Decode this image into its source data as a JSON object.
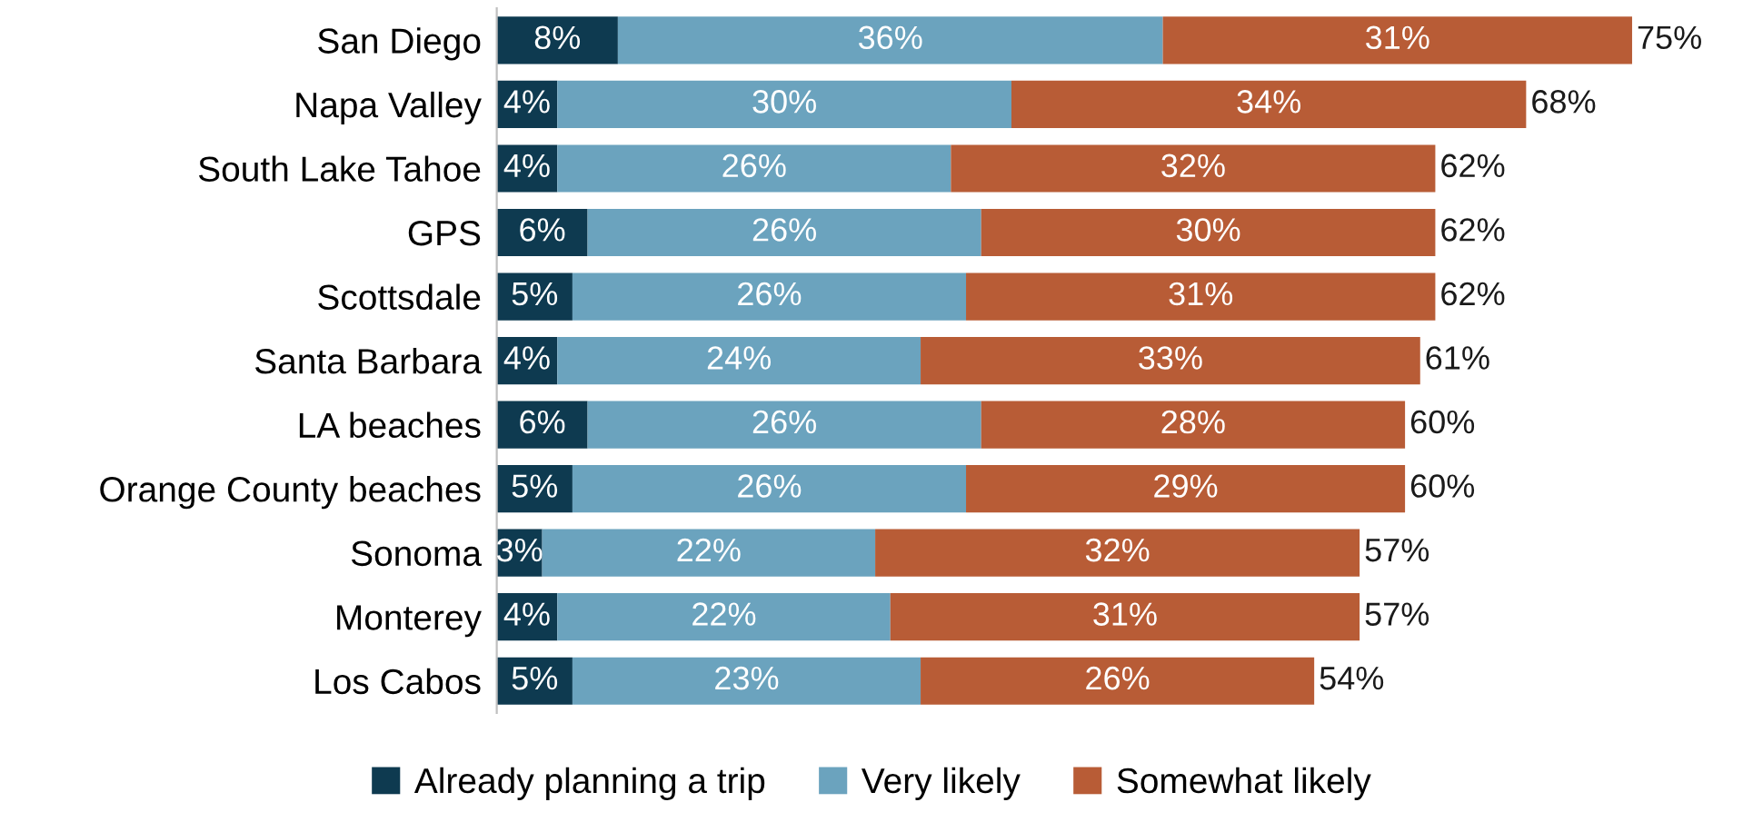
{
  "chart_data": {
    "type": "bar",
    "orientation": "horizontal",
    "stacked": true,
    "categories": [
      "San Diego",
      "Napa Valley",
      "South Lake Tahoe",
      "GPS",
      "Scottsdale",
      "Santa Barbara",
      "LA beaches",
      "Orange County beaches",
      "Sonoma",
      "Monterey",
      "Los Cabos"
    ],
    "series": [
      {
        "name": "Already planning a trip",
        "color": "#0e3a50",
        "values": [
          8,
          4,
          4,
          6,
          5,
          4,
          6,
          5,
          3,
          4,
          5
        ],
        "value_labels": [
          "8%",
          "4%",
          "4%",
          "6%",
          "5%",
          "4%",
          "6%",
          "5%",
          "3%",
          "4%",
          "5%"
        ]
      },
      {
        "name": "Very likely",
        "color": "#6ba3be",
        "values": [
          36,
          30,
          26,
          26,
          26,
          24,
          26,
          26,
          22,
          22,
          23
        ],
        "value_labels": [
          "36%",
          "30%",
          "26%",
          "26%",
          "26%",
          "24%",
          "26%",
          "26%",
          "22%",
          "22%",
          "23%"
        ]
      },
      {
        "name": "Somewhat likely",
        "color": "#b85c36",
        "values": [
          31,
          34,
          32,
          30,
          31,
          33,
          28,
          29,
          32,
          31,
          26
        ],
        "value_labels": [
          "31%",
          "34%",
          "32%",
          "30%",
          "31%",
          "33%",
          "28%",
          "29%",
          "32%",
          "31%",
          "26%"
        ]
      }
    ],
    "totals": [
      "75%",
      "68%",
      "62%",
      "62%",
      "62%",
      "61%",
      "60%",
      "60%",
      "57%",
      "57%",
      "54%"
    ],
    "legend": "bottom",
    "grid": false
  }
}
